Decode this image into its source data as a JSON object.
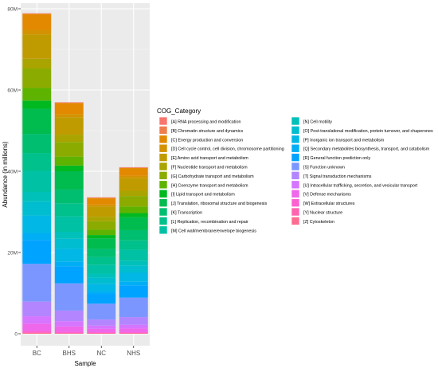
{
  "chart_data": {
    "type": "bar",
    "stacked": true,
    "xlabel": "Sample",
    "ylabel": "Abundance (in millions)",
    "categories": [
      "BC",
      "BHS",
      "NC",
      "NHS"
    ],
    "y_ticks": [
      0,
      20,
      40,
      60,
      80
    ],
    "y_tick_labels": [
      "0",
      "20M",
      "40M",
      "60M",
      "80M"
    ],
    "ylim": [
      0,
      80
    ],
    "grid": true,
    "legend_position": "right",
    "legend_title": "COG_Category",
    "series": [
      {
        "name": "[A] RNA processing and modification",
        "color": "#F8766D",
        "values": [
          0.1,
          0.1,
          0.1,
          0.1
        ]
      },
      {
        "name": "[B] Chromatin structure and dynamics",
        "color": "#F07E4C",
        "values": [
          0.1,
          0.1,
          0.1,
          0.1
        ]
      },
      {
        "name": "[C] Energy production and conversion",
        "color": "#E38900",
        "values": [
          3.9,
          2.7,
          1.6,
          1.9
        ]
      },
      {
        "name": "[D] Cell cycle control, cell division, chromosome partitioning",
        "color": "#D49200",
        "values": [
          1.1,
          0.8,
          0.5,
          0.6
        ]
      },
      {
        "name": "[E] Amino acid transport and metabolism",
        "color": "#C09B00",
        "values": [
          6.0,
          4.3,
          2.5,
          3.1
        ]
      },
      {
        "name": "[F] Nucleotide transport and metabolism",
        "color": "#A9A400",
        "values": [
          2.4,
          1.8,
          1.1,
          1.3
        ]
      },
      {
        "name": "[G] Carbohydrate transport and metabolism",
        "color": "#8BAB00",
        "values": [
          4.8,
          3.6,
          2.1,
          2.6
        ]
      },
      {
        "name": "[H] Coenzyme transport and metabolism",
        "color": "#5EB300",
        "values": [
          3.1,
          2.2,
          1.3,
          1.6
        ]
      },
      {
        "name": "[I] Lipid transport and metabolism",
        "color": "#00B81F",
        "values": [
          2.0,
          1.4,
          0.8,
          1.0
        ]
      },
      {
        "name": "[J] Translation, ribosomal structure and biogenesis",
        "color": "#00BB4E",
        "values": [
          6.2,
          4.5,
          2.6,
          3.2
        ]
      },
      {
        "name": "[K] Transcription",
        "color": "#00BE70",
        "values": [
          4.7,
          3.4,
          2.0,
          2.5
        ]
      },
      {
        "name": "[L] Replication, recombination and repair",
        "color": "#00C08B",
        "values": [
          4.4,
          3.2,
          1.9,
          2.3
        ]
      },
      {
        "name": "[M] Cell wall/membrane/envelope biogenesis",
        "color": "#00C1A3",
        "values": [
          5.2,
          3.8,
          2.2,
          2.7
        ]
      },
      {
        "name": "[N] Cell motility",
        "color": "#00C0BA",
        "values": [
          2.3,
          1.7,
          1.0,
          1.2
        ]
      },
      {
        "name": "[O] Post-translational modification, protein turnover, and chaperones",
        "color": "#00BDD0",
        "values": [
          3.5,
          2.5,
          1.5,
          1.8
        ]
      },
      {
        "name": "[P] Inorganic ion transport and metabolism",
        "color": "#00B7E5",
        "values": [
          4.3,
          3.1,
          1.8,
          2.2
        ]
      },
      {
        "name": "[Q] Secondary metabolites biosynthesis, transport, and catabolism",
        "color": "#00AEF6",
        "values": [
          1.7,
          1.2,
          0.7,
          0.9
        ]
      },
      {
        "name": "[R] General function prediction only",
        "color": "#00A3FF",
        "values": [
          5.9,
          4.2,
          2.4,
          3.0
        ]
      },
      {
        "name": "[S] Function unknown",
        "color": "#7C96FF",
        "values": [
          9.3,
          6.7,
          3.9,
          4.8
        ]
      },
      {
        "name": "[T] Signal transduction mechanisms",
        "color": "#B385FF",
        "values": [
          3.6,
          2.6,
          1.5,
          1.9
        ]
      },
      {
        "name": "[U] Intracellular trafficking, secretion, and vesicular transport",
        "color": "#D675FF",
        "values": [
          1.8,
          1.3,
          0.8,
          0.9
        ]
      },
      {
        "name": "[V] Defense mechanisms",
        "color": "#EF67EB",
        "values": [
          1.8,
          1.3,
          0.8,
          0.9
        ]
      },
      {
        "name": "[W] Extracellular structures",
        "color": "#FD61D1",
        "values": [
          0.4,
          0.3,
          0.2,
          0.2
        ]
      },
      {
        "name": "[Y] Nuclear structure",
        "color": "#FF64B0",
        "values": [
          0.1,
          0.1,
          0.1,
          0.1
        ]
      },
      {
        "name": "[Z] Cytoskeleton",
        "color": "#FF6C91",
        "values": [
          0.2,
          0.1,
          0.1,
          0.1
        ]
      }
    ]
  }
}
